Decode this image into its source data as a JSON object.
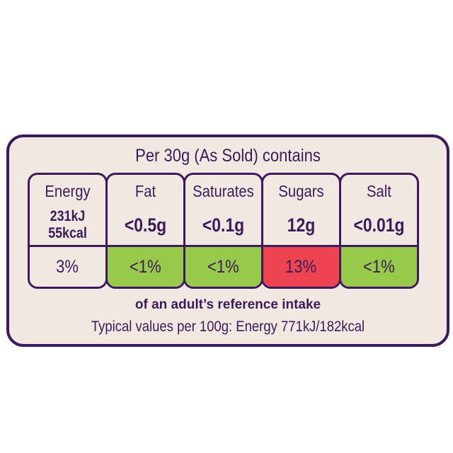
{
  "title": "Per 30g (As Sold) contains",
  "colors": {
    "background": "#f1e9e1",
    "border": "#3d1a5e",
    "green": "#97c94a",
    "red": "#ee4452",
    "neutral": "#f1e9e1"
  },
  "nutrients": [
    {
      "name": "Energy",
      "value": "231kJ\n55kcal",
      "value_line1": "231kJ",
      "value_line2": "55kcal",
      "ri": "3%",
      "level": "neutral"
    },
    {
      "name": "Fat",
      "value": "<0.5g",
      "ri": "<1%",
      "level": "green"
    },
    {
      "name": "Saturates",
      "value": "<0.1g",
      "ri": "<1%",
      "level": "green"
    },
    {
      "name": "Sugars",
      "value": "12g",
      "ri": "13%",
      "level": "red"
    },
    {
      "name": "Salt",
      "value": "<0.01g",
      "ri": "<1%",
      "level": "green"
    }
  ],
  "reference_note": "of an adult’s reference intake",
  "typical_values": "Typical values per 100g: Energy 771kJ/182kcal"
}
